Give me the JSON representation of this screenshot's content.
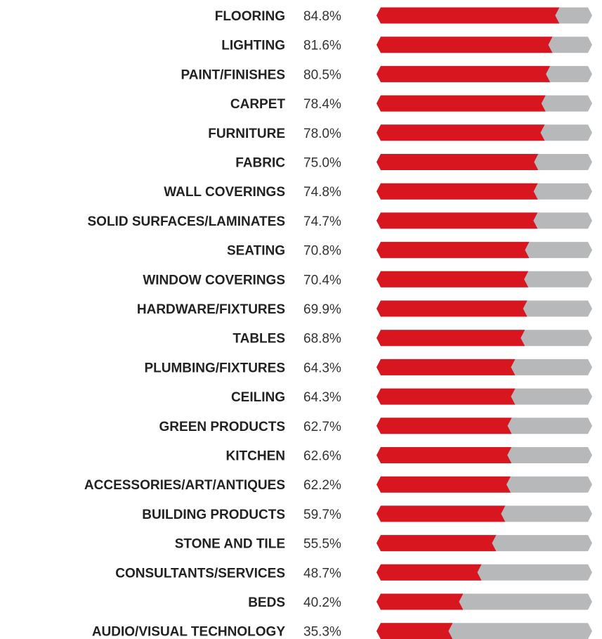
{
  "chart_data": {
    "type": "bar",
    "title": "",
    "xlabel": "",
    "ylabel": "",
    "xlim": [
      0,
      100
    ],
    "value_suffix": "%",
    "orientation": "horizontal",
    "colors": {
      "filled": "#d7161f",
      "remainder": "#b7b8ba"
    },
    "categories": [
      "FLOORING",
      "LIGHTING",
      "PAINT/FINISHES",
      "CARPET",
      "FURNITURE",
      "FABRIC",
      "WALL COVERINGS",
      "SOLID SURFACES/LAMINATES",
      "SEATING",
      "WINDOW COVERINGS",
      "HARDWARE/FIXTURES",
      "TABLES",
      "PLUMBING/FIXTURES",
      "CEILING",
      "GREEN PRODUCTS",
      "KITCHEN",
      "ACCESSORIES/ART/ANTIQUES",
      "BUILDING PRODUCTS",
      "STONE AND TILE",
      "CONSULTANTS/SERVICES",
      "BEDS",
      "AUDIO/VISUAL TECHNOLOGY"
    ],
    "value_labels": [
      "84.8%",
      "81.6%",
      "80.5%",
      "78.4%",
      "78.0%",
      "75.0%",
      "74.8%",
      "74.7%",
      "70.8%",
      "70.4%",
      "69.9%",
      "68.8%",
      "64.3%",
      "64.3%",
      "62.7%",
      "62.6%",
      "62.2%",
      "59.7%",
      "55.5%",
      "48.7%",
      "40.2%",
      "35.3%"
    ],
    "values": [
      84.8,
      81.6,
      80.5,
      78.4,
      78.0,
      75.0,
      74.8,
      74.7,
      70.8,
      70.4,
      69.9,
      68.8,
      64.3,
      64.3,
      62.7,
      62.6,
      62.2,
      59.7,
      55.5,
      48.7,
      40.2,
      35.3
    ]
  }
}
